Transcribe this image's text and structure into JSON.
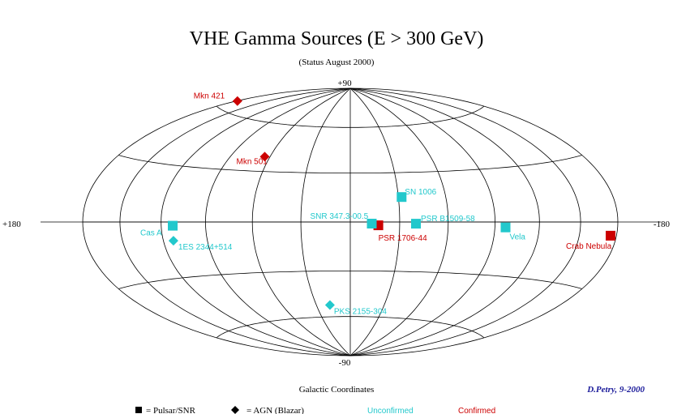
{
  "title": "VHE Gamma Sources (E > 300 GeV)",
  "subtitle": "(Status August 2000)",
  "xlabel": "Galactic Coordinates",
  "credit": "D.Petry, 9-2000",
  "axis_labels": {
    "top": "+90",
    "bottom": "-90",
    "left": "+180",
    "right": "-180"
  },
  "legend": {
    "square_item": "= Pulsar/SNR",
    "diamond_item": "= AGN (Blazar)",
    "unconfirmed": "Unconfirmed",
    "confirmed": "Confirmed"
  },
  "colors": {
    "confirmed": "#cc0000",
    "unconfirmed": "#22c8cc",
    "credit": "#1a1a9a",
    "grid": "#000000"
  },
  "chart_data": {
    "type": "scatter",
    "projection": "aitoff-hammer (galactic)",
    "title": "VHE Gamma Sources (E > 300 GeV)",
    "subtitle": "(Status August 2000)",
    "xlabel": "Galactic Coordinates",
    "xlim": [
      180,
      -180
    ],
    "ylim": [
      -90,
      90
    ],
    "grid": true,
    "series": [
      {
        "name": "Confirmed",
        "points": [
          {
            "label": "Mkn 421",
            "l": 179,
            "b": 65,
            "marker": "diamond"
          },
          {
            "label": "Mkn 501",
            "l": 64,
            "b": 39,
            "marker": "diamond"
          },
          {
            "label": "PSR 1706-44",
            "l": 343,
            "b": -2,
            "marker": "square"
          },
          {
            "label": "Crab Nebula",
            "l": 185,
            "b": -6,
            "marker": "square"
          }
        ]
      },
      {
        "name": "Unconfirmed",
        "points": [
          {
            "label": "1ES 2344+514",
            "l": 113,
            "b": -10,
            "marker": "diamond"
          },
          {
            "label": "PKS 2155-304",
            "l": 18,
            "b": -52,
            "marker": "diamond"
          },
          {
            "label": "Cas A",
            "l": 112,
            "b": -2,
            "marker": "square"
          },
          {
            "label": "SN 1006",
            "l": 328,
            "b": 15,
            "marker": "square"
          },
          {
            "label": "SNR 347.3-00.5",
            "l": 347,
            "b": -1,
            "marker": "square"
          },
          {
            "label": "PSR B1509-58",
            "l": 320,
            "b": -1,
            "marker": "square"
          },
          {
            "label": "Vela",
            "l": 263,
            "b": -3,
            "marker": "square"
          }
        ]
      }
    ]
  }
}
